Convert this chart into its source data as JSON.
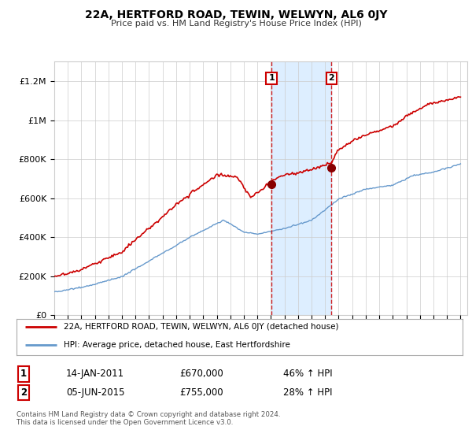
{
  "title": "22A, HERTFORD ROAD, TEWIN, WELWYN, AL6 0JY",
  "subtitle": "Price paid vs. HM Land Registry's House Price Index (HPI)",
  "ylim": [
    0,
    1300000
  ],
  "yticks": [
    0,
    200000,
    400000,
    600000,
    800000,
    1000000,
    1200000
  ],
  "ytick_labels": [
    "£0",
    "£200K",
    "£400K",
    "£600K",
    "£800K",
    "£1M",
    "£1.2M"
  ],
  "x_start_year": 1995,
  "x_end_year": 2025,
  "sale1_date": 2011.04,
  "sale1_price": 670000,
  "sale1_label": "1",
  "sale2_date": 2015.46,
  "sale2_price": 755000,
  "sale2_label": "2",
  "property_color": "#cc0000",
  "hpi_color": "#6699cc",
  "shade_color": "#ddeeff",
  "legend_property": "22A, HERTFORD ROAD, TEWIN, WELWYN, AL6 0JY (detached house)",
  "legend_hpi": "HPI: Average price, detached house, East Hertfordshire",
  "table_row1": [
    "1",
    "14-JAN-2011",
    "£670,000",
    "46% ↑ HPI"
  ],
  "table_row2": [
    "2",
    "05-JUN-2015",
    "£755,000",
    "28% ↑ HPI"
  ],
  "footer": "Contains HM Land Registry data © Crown copyright and database right 2024.\nThis data is licensed under the Open Government Licence v3.0.",
  "background_color": "#ffffff",
  "grid_color": "#cccccc"
}
